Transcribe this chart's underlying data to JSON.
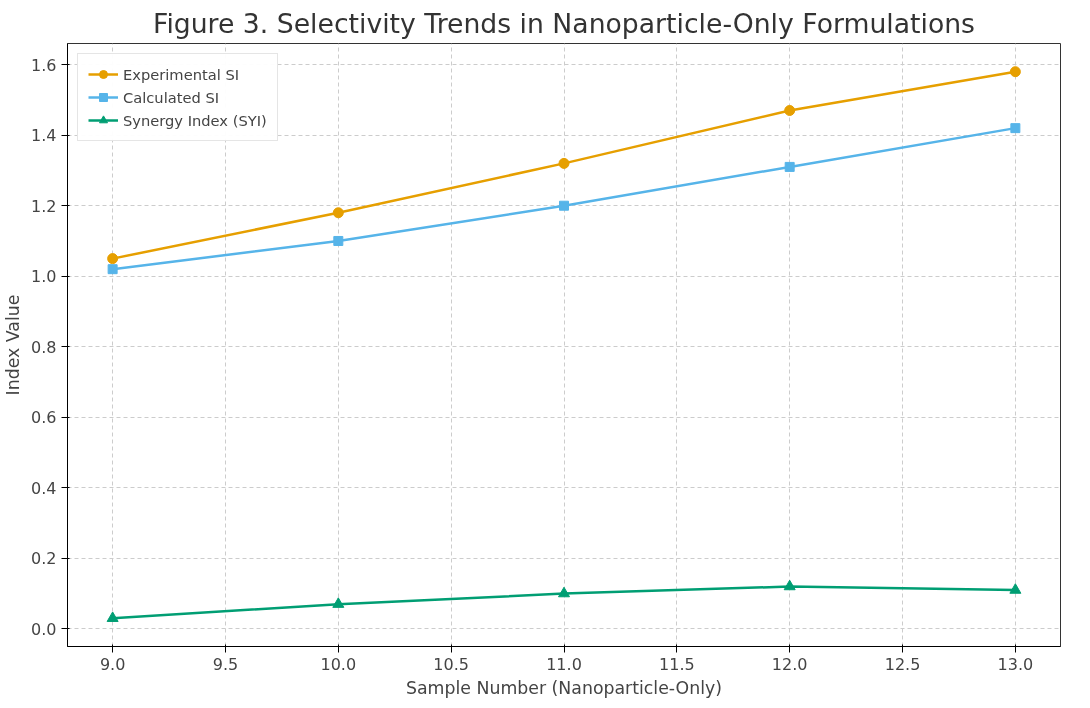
{
  "chart_data": {
    "type": "line",
    "title": "Figure 3. Selectivity Trends in Nanoparticle-Only Formulations",
    "xlabel": "Sample Number (Nanoparticle-Only)",
    "ylabel": "Index Value",
    "x": [
      9,
      10,
      11,
      12,
      13
    ],
    "series": [
      {
        "name": "Experimental SI",
        "color": "#e69f00",
        "marker": "circle",
        "values": [
          1.05,
          1.18,
          1.32,
          1.47,
          1.58
        ]
      },
      {
        "name": "Calculated SI",
        "color": "#56b4e9",
        "marker": "square",
        "values": [
          1.02,
          1.1,
          1.2,
          1.31,
          1.42
        ]
      },
      {
        "name": "Synergy Index (SYI)",
        "color": "#009e73",
        "marker": "triangle",
        "values": [
          0.03,
          0.07,
          0.1,
          0.12,
          0.11
        ]
      }
    ],
    "xlim": [
      8.8,
      13.2
    ],
    "ylim": [
      -0.05,
      1.66
    ],
    "xticks": [
      {
        "value": 9,
        "label": "9.0"
      },
      9.5,
      {
        "value": 10,
        "label": "10.0"
      },
      10.5,
      {
        "value": 11,
        "label": "11.0"
      },
      11.5,
      {
        "value": 12,
        "label": "12.0"
      },
      12.5,
      {
        "value": 13,
        "label": "13.0"
      }
    ],
    "yticks": [
      {
        "value": 0,
        "label": "0.0"
      },
      0.2,
      0.4,
      0.6,
      0.8,
      {
        "value": 1,
        "label": "1.0"
      },
      1.2,
      1.4,
      1.6
    ],
    "grid": true,
    "legend": "top left",
    "line_style": "solid"
  }
}
